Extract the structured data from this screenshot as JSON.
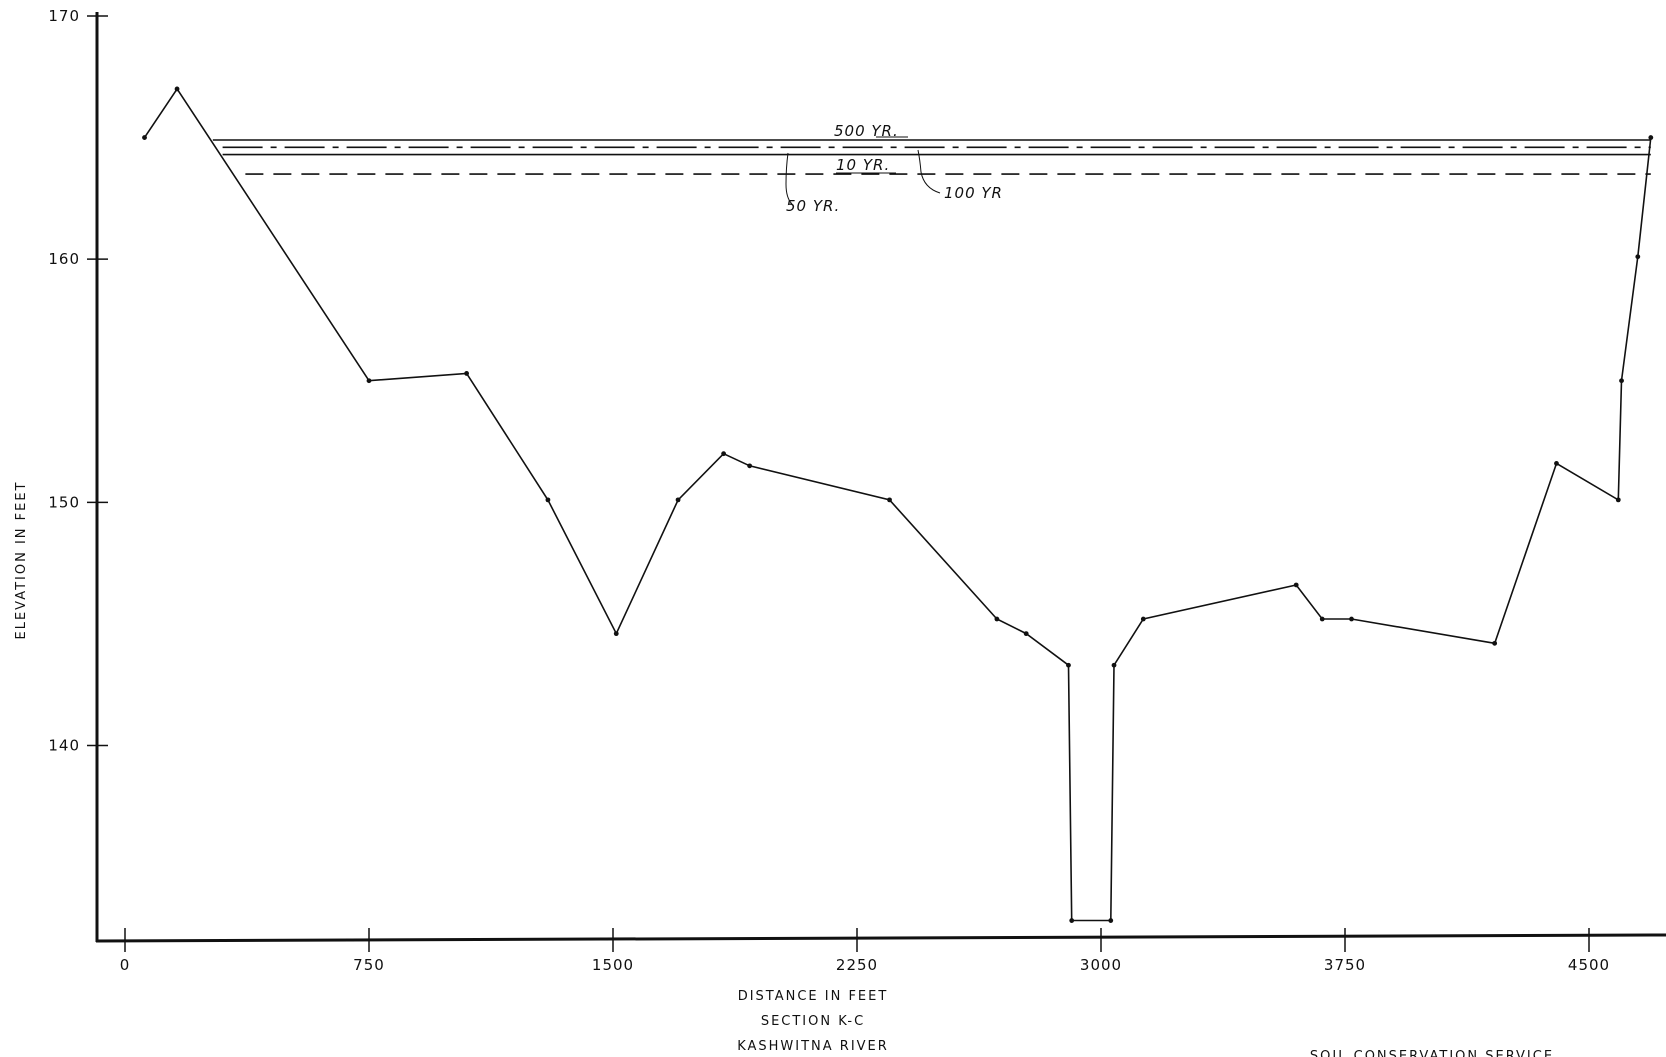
{
  "chart_data": {
    "type": "line",
    "title": "",
    "xlabel": "DISTANCE   IN   FEET",
    "ylabel": "ELEVATION   IN   FEET",
    "caption_lines": [
      "SECTION   K-C",
      "KASHWITNA   RIVER"
    ],
    "agency": "SOIL   CONSERVATION   SERVICE",
    "xlim": [
      0,
      4800
    ],
    "ylim": [
      132,
      170
    ],
    "x_ticks": [
      0,
      750,
      1500,
      2250,
      3000,
      3750,
      4500
    ],
    "x_tick_labels": [
      "0",
      "750",
      "1500",
      "2250",
      "3000",
      "3750",
      "4500"
    ],
    "y_ticks": [
      140,
      150,
      160,
      170
    ],
    "y_tick_labels": [
      "140",
      "150",
      "160",
      "170"
    ],
    "grid": false,
    "series": [
      {
        "kind": "ground",
        "points": [
          [
            60,
            165
          ],
          [
            160,
            167
          ],
          [
            750,
            155
          ],
          [
            1050,
            155.3
          ],
          [
            1300,
            150.1
          ],
          [
            1510,
            144.6
          ],
          [
            1700,
            150.1
          ],
          [
            1840,
            152
          ],
          [
            1920,
            151.5
          ],
          [
            2350,
            150.1
          ],
          [
            2680,
            145.2
          ],
          [
            2770,
            144.6
          ],
          [
            2900,
            143.3
          ],
          [
            2910,
            132.8
          ],
          [
            3030,
            132.8
          ],
          [
            3040,
            143.3
          ],
          [
            3130,
            145.2
          ],
          [
            3600,
            146.6
          ],
          [
            3680,
            145.2
          ],
          [
            3770,
            145.2
          ],
          [
            4210,
            144.2
          ],
          [
            4400,
            151.6
          ],
          [
            4590,
            150.1
          ],
          [
            4600,
            155
          ],
          [
            4650,
            160.1
          ],
          [
            4690,
            165
          ]
        ]
      },
      {
        "name": "500 YR.",
        "elevation": 164.9,
        "x_range": [
          270,
          4690
        ],
        "style": "solid"
      },
      {
        "name": "100 YR",
        "elevation": 164.6,
        "x_range": [
          300,
          4690
        ],
        "style": "dashdot"
      },
      {
        "name": "10 YR.",
        "elevation": 164.3,
        "x_range": [
          300,
          4690
        ],
        "style": "solid"
      },
      {
        "name": "50 YR.",
        "elevation": 163.5,
        "x_range": [
          370,
          4690
        ],
        "style": "dashed"
      }
    ]
  }
}
